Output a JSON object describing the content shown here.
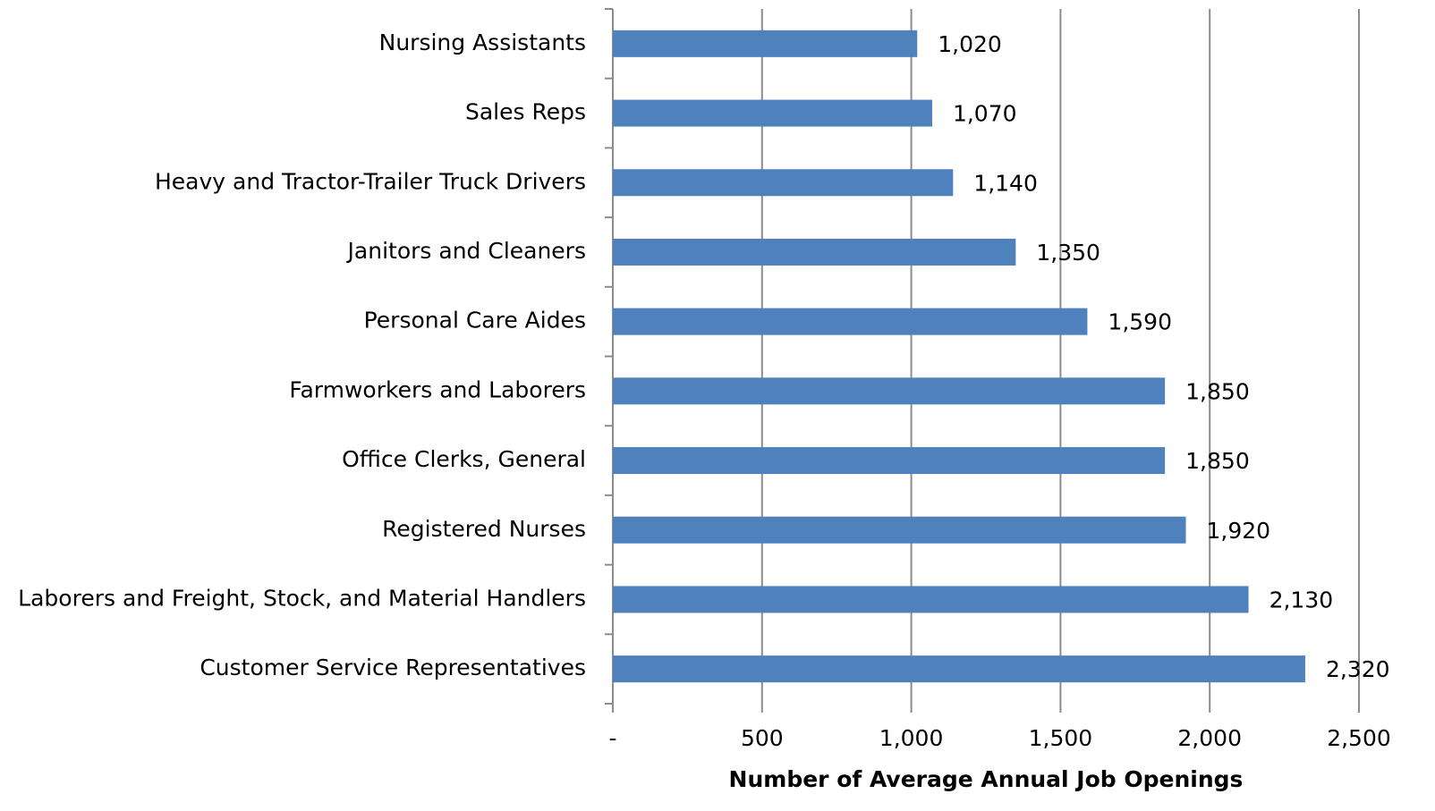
{
  "chart_data": {
    "type": "bar",
    "orientation": "horizontal",
    "x_label": "Number of Average Annual Job Openings",
    "categories": [
      "Nursing Assistants",
      "Sales Reps",
      "Heavy and Tractor-Trailer Truck Drivers",
      "Janitors and Cleaners",
      "Personal Care Aides",
      "Farmworkers and Laborers",
      "Office Clerks, General",
      "Registered Nurses",
      "Laborers and Freight, Stock, and Material Handlers",
      "Customer Service Representatives"
    ],
    "values": [
      1020,
      1070,
      1140,
      1350,
      1590,
      1850,
      1850,
      1920,
      2130,
      2320
    ],
    "value_labels": [
      "1,020",
      "1,070",
      "1,140",
      "1,350",
      "1,590",
      "1,850",
      "1,850",
      "1,920",
      "2,130",
      "2,320"
    ],
    "color": "#4f81bd",
    "xlim": [
      0,
      2500
    ],
    "xticks": [
      {
        "value": 0,
        "label": "-"
      },
      500,
      {
        "value": 1000,
        "label": "1,000"
      },
      {
        "value": 1500,
        "label": "1,500"
      },
      {
        "value": 2000,
        "label": "2,000"
      },
      {
        "value": 2500,
        "label": "2,500"
      }
    ],
    "grid": true
  }
}
